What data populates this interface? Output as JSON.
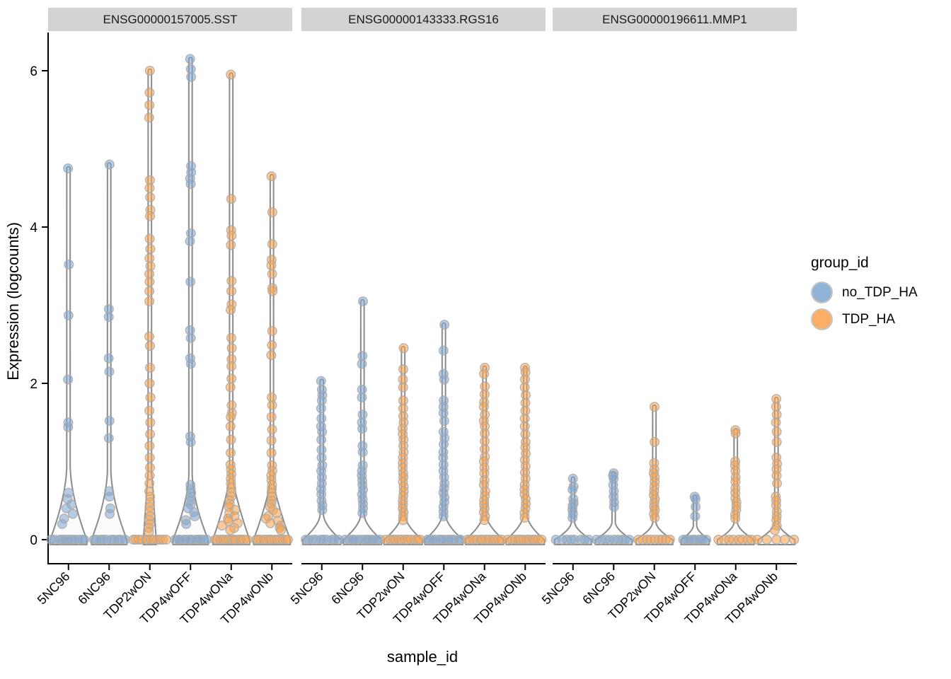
{
  "figure": {
    "y_axis": {
      "title": "Expression (logcounts)",
      "ticks": [
        "0",
        "2",
        "4",
        "6"
      ]
    },
    "x_axis": {
      "title": "sample_id"
    },
    "legend": {
      "title": "group_id",
      "entries": [
        {
          "label": "no_TDP_HA",
          "color": "#7ea6d2"
        },
        {
          "label": "TDP_HA",
          "color": "#fba24b"
        }
      ]
    }
  },
  "chart_data": {
    "type": "violin",
    "title": "",
    "xlabel": "sample_id",
    "ylabel": "Expression (logcounts)",
    "y_ticks": [
      0,
      2,
      4,
      6
    ],
    "ylim": [
      0,
      6.3
    ],
    "samples": [
      "5NC96",
      "6NC96",
      "TDP2wON",
      "TDP4wOFF",
      "TDP4wONa",
      "TDP4wONb"
    ],
    "group_of_sample": {
      "5NC96": "no_TDP_HA",
      "6NC96": "no_TDP_HA",
      "TDP2wON": "TDP_HA",
      "TDP4wOFF": "no_TDP_HA",
      "TDP4wONa": "TDP_HA",
      "TDP4wONb": "TDP_HA"
    },
    "colors": {
      "no_TDP_HA": "#7ea6d2",
      "TDP_HA": "#fba24b",
      "violin_fill": "#fbfbfb",
      "violin_stroke": "#8b8b8b",
      "point_stroke": "#a9a9a9",
      "strip_bg": "#d3d3d3",
      "axis": "#000000"
    },
    "facets": [
      {
        "label": "ENSG00000157005.SST",
        "violins": [
          {
            "sample": "5NC96",
            "group": "no_TDP_HA",
            "max": 4.75,
            "w0": 26,
            "taper": 0.95,
            "curve": 1.7,
            "n_zero": 11,
            "points": [
              4.75,
              3.52,
              2.87,
              2.05,
              1.5,
              1.44,
              0.6,
              0.52,
              0.45,
              0.4,
              0.33,
              0.27,
              0.2
            ]
          },
          {
            "sample": "6NC96",
            "group": "no_TDP_HA",
            "max": 4.8,
            "w0": 25,
            "taper": 0.9,
            "curve": 1.7,
            "n_zero": 10,
            "points": [
              4.8,
              2.95,
              2.85,
              2.32,
              2.15,
              1.52,
              1.3,
              0.62,
              0.55,
              0.4,
              0.33
            ]
          },
          {
            "sample": "TDP2wON",
            "group": "TDP_HA",
            "max": 6.0,
            "w0": 9,
            "taper": 0.85,
            "curve": 0.9,
            "n_zero": 12,
            "zero_spread": 23,
            "points": [
              6.0,
              5.72,
              5.56,
              5.4,
              4.6,
              4.5,
              4.38,
              4.22,
              4.14,
              3.85,
              3.72,
              3.6,
              3.5,
              3.4,
              3.3,
              3.18,
              3.05,
              2.6,
              2.48,
              2.2,
              2.0,
              1.82,
              1.65,
              1.5,
              1.35,
              1.2,
              1.05,
              0.92,
              0.82,
              0.72,
              0.62,
              0.55,
              0.48,
              0.42,
              0.36,
              0.3,
              0.25,
              0.2,
              0.15,
              0.1
            ]
          },
          {
            "sample": "TDP4wOFF",
            "group": "no_TDP_HA",
            "max": 6.15,
            "w0": 25,
            "taper": 0.85,
            "curve": 1.7,
            "n_zero": 12,
            "points": [
              6.15,
              6.02,
              5.92,
              4.78,
              4.7,
              4.62,
              4.55,
              3.92,
              3.82,
              3.3,
              2.68,
              2.58,
              2.32,
              2.25,
              1.32,
              1.25,
              0.7,
              0.65,
              0.6,
              0.55,
              0.5,
              0.45,
              0.4,
              0.35,
              0.3,
              0.25,
              0.2
            ]
          },
          {
            "sample": "TDP4wONa",
            "group": "TDP_HA",
            "max": 5.95,
            "w0": 26,
            "taper": 0.8,
            "curve": 1.3,
            "n_zero": 13,
            "points": [
              5.95,
              4.36,
              3.96,
              3.89,
              3.77,
              3.31,
              3.18,
              3.01,
              2.94,
              2.58,
              2.45,
              2.31,
              2.22,
              2.06,
              1.95,
              1.72,
              1.62,
              1.57,
              1.45,
              1.28,
              1.11,
              0.96,
              0.9,
              0.84,
              0.78,
              0.72,
              0.66,
              0.6,
              0.55,
              0.5,
              0.46,
              0.42,
              0.38,
              0.34,
              0.3,
              0.27,
              0.24,
              0.21,
              0.18,
              0.15,
              0.12
            ]
          },
          {
            "sample": "TDP4wONb",
            "group": "TDP_HA",
            "max": 4.65,
            "w0": 26,
            "taper": 0.75,
            "curve": 1.3,
            "n_zero": 13,
            "points": [
              4.65,
              4.19,
              3.78,
              3.58,
              3.51,
              3.4,
              3.22,
              3.18,
              2.67,
              2.49,
              2.36,
              1.82,
              1.72,
              1.57,
              1.41,
              1.27,
              1.11,
              0.95,
              0.88,
              0.82,
              0.76,
              0.7,
              0.65,
              0.6,
              0.55,
              0.5,
              0.46,
              0.42,
              0.38,
              0.34,
              0.3,
              0.27,
              0.24,
              0.21,
              0.18,
              0.15,
              0.12
            ]
          }
        ]
      },
      {
        "label": "ENSG00000143333.RGS16",
        "violins": [
          {
            "sample": "5NC96",
            "group": "no_TDP_HA",
            "max": 2.03,
            "w0": 27,
            "taper": 0.32,
            "curve": 1.7,
            "n_zero": 10,
            "points": [
              2.03,
              1.92,
              1.85,
              1.78,
              1.68,
              1.55,
              1.45,
              1.38,
              1.28,
              1.15,
              1.05,
              0.95,
              0.88,
              0.8,
              0.72,
              0.65,
              0.58,
              0.5,
              0.44,
              0.38
            ]
          },
          {
            "sample": "6NC96",
            "group": "no_TDP_HA",
            "max": 3.05,
            "w0": 27,
            "taper": 0.32,
            "curve": 1.7,
            "n_zero": 12,
            "points": [
              3.05,
              2.35,
              2.25,
              1.92,
              1.82,
              1.6,
              1.5,
              1.42,
              1.2,
              1.12,
              0.95,
              0.88,
              0.82,
              0.76,
              0.7,
              0.64,
              0.58,
              0.52,
              0.46,
              0.4,
              0.34
            ]
          },
          {
            "sample": "TDP2wON",
            "group": "TDP_HA",
            "max": 2.45,
            "w0": 27,
            "taper": 0.32,
            "curve": 1.7,
            "n_zero": 12,
            "points": [
              2.45,
              2.18,
              2.05,
              1.95,
              1.78,
              1.68,
              1.58,
              1.5,
              1.42,
              1.35,
              1.28,
              1.2,
              1.12,
              1.05,
              0.98,
              0.92,
              0.85,
              0.8,
              0.74,
              0.68,
              0.62,
              0.56,
              0.5,
              0.45,
              0.4,
              0.35,
              0.3,
              0.25
            ]
          },
          {
            "sample": "TDP4wOFF",
            "group": "no_TDP_HA",
            "max": 2.75,
            "w0": 27,
            "taper": 0.32,
            "curve": 1.7,
            "n_zero": 12,
            "points": [
              2.75,
              2.42,
              2.12,
              2.05,
              1.78,
              1.7,
              1.62,
              1.52,
              1.38,
              1.3,
              1.22,
              1.12,
              1.05,
              0.96,
              0.88,
              0.8,
              0.72,
              0.66,
              0.6,
              0.54,
              0.48,
              0.42,
              0.36,
              0.3
            ]
          },
          {
            "sample": "TDP4wONa",
            "group": "TDP_HA",
            "max": 2.2,
            "w0": 27,
            "taper": 0.32,
            "curve": 1.7,
            "n_zero": 12,
            "points": [
              2.2,
              2.12,
              1.96,
              1.86,
              1.76,
              1.7,
              1.6,
              1.52,
              1.45,
              1.36,
              1.26,
              1.16,
              1.06,
              1.0,
              0.92,
              0.85,
              0.76,
              0.7,
              0.62,
              0.56,
              0.5,
              0.45,
              0.4,
              0.35,
              0.3,
              0.25
            ]
          },
          {
            "sample": "TDP4wONb",
            "group": "TDP_HA",
            "max": 2.2,
            "w0": 27,
            "taper": 0.32,
            "curve": 1.7,
            "n_zero": 12,
            "points": [
              2.2,
              2.14,
              2.05,
              1.95,
              1.85,
              1.75,
              1.65,
              1.55,
              1.45,
              1.35,
              1.25,
              1.18,
              1.1,
              1.02,
              0.94,
              0.86,
              0.78,
              0.7,
              0.64,
              0.58,
              0.52,
              0.46,
              0.4,
              0.34,
              0.28
            ]
          }
        ]
      },
      {
        "label": "ENSG00000196611.MMP1",
        "violins": [
          {
            "sample": "5NC96",
            "group": "no_TDP_HA",
            "max": 0.78,
            "w0": 26,
            "taper": 0.22,
            "curve": 1.7,
            "n_zero": 8,
            "points": [
              0.78,
              0.68,
              0.64,
              0.52,
              0.47,
              0.43,
              0.38,
              0.33,
              0.28
            ]
          },
          {
            "sample": "6NC96",
            "group": "no_TDP_HA",
            "max": 0.85,
            "w0": 26,
            "taper": 0.22,
            "curve": 1.7,
            "n_zero": 9,
            "points": [
              0.85,
              0.82,
              0.78,
              0.7,
              0.62,
              0.55,
              0.48,
              0.42
            ]
          },
          {
            "sample": "TDP2wON",
            "group": "TDP_HA",
            "max": 1.7,
            "w0": 26,
            "taper": 0.22,
            "curve": 1.7,
            "n_zero": 9,
            "points": [
              1.7,
              1.25,
              0.98,
              0.9,
              0.85,
              0.8,
              0.74,
              0.68,
              0.62,
              0.57,
              0.52,
              0.47,
              0.42,
              0.38,
              0.33,
              0.28
            ]
          },
          {
            "sample": "TDP4wOFF",
            "group": "no_TDP_HA",
            "max": 0.55,
            "w0": 20,
            "taper": 0.18,
            "curve": 1.7,
            "n_zero": 9,
            "points": [
              0.55,
              0.52,
              0.42,
              0.3
            ]
          },
          {
            "sample": "TDP4wONa",
            "group": "TDP_HA",
            "max": 1.4,
            "w0": 26,
            "taper": 0.22,
            "curve": 1.7,
            "n_zero": 8,
            "points": [
              1.4,
              1.36,
              1.0,
              0.95,
              0.88,
              0.8,
              0.74,
              0.66,
              0.6,
              0.53,
              0.48,
              0.43,
              0.38,
              0.32,
              0.27
            ]
          },
          {
            "sample": "TDP4wONb",
            "group": "TDP_HA",
            "max": 1.8,
            "w0": 26,
            "taper": 0.22,
            "curve": 1.7,
            "n_zero": 5,
            "zero_spread": 26,
            "points": [
              1.8,
              1.7,
              1.6,
              1.5,
              1.38,
              1.25,
              1.05,
              0.97,
              0.9,
              0.82,
              0.72,
              0.55,
              0.5,
              0.44,
              0.36,
              0.3,
              0.25,
              0.18,
              0.12
            ]
          }
        ]
      }
    ]
  }
}
